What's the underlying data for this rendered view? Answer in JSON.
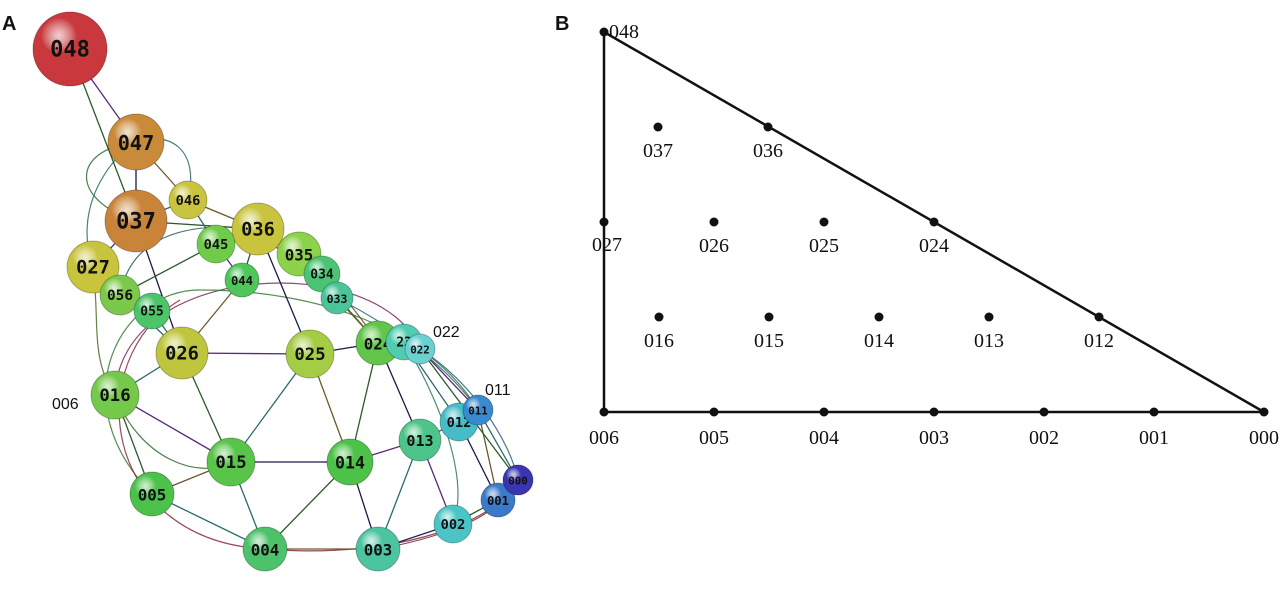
{
  "panels": {
    "a": "A",
    "b": "B"
  },
  "network": {
    "nodes": [
      {
        "id": "048",
        "color": "#c8383c"
      },
      {
        "id": "047",
        "color": "#c98a3a"
      },
      {
        "id": "037",
        "color": "#c9843a"
      },
      {
        "id": "046",
        "color": "#c9c43e"
      },
      {
        "id": "036",
        "color": "#c9c43e"
      },
      {
        "id": "027",
        "color": "#c9c43e"
      },
      {
        "id": "045",
        "color": "#6fcc4a"
      },
      {
        "id": "044",
        "color": "#4dc65a"
      },
      {
        "id": "035",
        "color": "#8cd24a"
      },
      {
        "id": "034",
        "color": "#4cc474"
      },
      {
        "id": "033",
        "color": "#4cc49a"
      },
      {
        "id": "056",
        "color": "#7cc84a"
      },
      {
        "id": "055",
        "color": "#4cc46a"
      },
      {
        "id": "026",
        "color": "#bfc63e"
      },
      {
        "id": "025",
        "color": "#a4cc44"
      },
      {
        "id": "024",
        "color": "#62c64a"
      },
      {
        "id": "023",
        "color": "#52ccb0"
      },
      {
        "id": "022",
        "color": "#6ad0d0"
      },
      {
        "id": "016",
        "color": "#74c84a"
      },
      {
        "id": "015",
        "color": "#58c44a"
      },
      {
        "id": "014",
        "color": "#4cc248"
      },
      {
        "id": "013",
        "color": "#4cc48a"
      },
      {
        "id": "012",
        "color": "#46bcc8"
      },
      {
        "id": "011",
        "color": "#3a8ad0"
      },
      {
        "id": "005",
        "color": "#4cc24a"
      },
      {
        "id": "004",
        "color": "#4cc26a"
      },
      {
        "id": "003",
        "color": "#4cc4a0"
      },
      {
        "id": "002",
        "color": "#4ac4c4"
      },
      {
        "id": "001",
        "color": "#3a7ac8"
      },
      {
        "id": "000",
        "color": "#3a36b0"
      }
    ],
    "edges": [
      [
        "048",
        "047"
      ],
      [
        "048",
        "037"
      ],
      [
        "047",
        "037"
      ],
      [
        "047",
        "046"
      ],
      [
        "037",
        "046"
      ],
      [
        "037",
        "027"
      ],
      [
        "037",
        "036"
      ],
      [
        "037",
        "026"
      ],
      [
        "046",
        "036"
      ],
      [
        "046",
        "045"
      ],
      [
        "036",
        "035"
      ],
      [
        "036",
        "044"
      ],
      [
        "036",
        "025"
      ],
      [
        "027",
        "056"
      ],
      [
        "027",
        "026"
      ],
      [
        "045",
        "044"
      ],
      [
        "045",
        "056"
      ],
      [
        "056",
        "055"
      ],
      [
        "044",
        "026"
      ],
      [
        "055",
        "026"
      ],
      [
        "035",
        "034"
      ],
      [
        "035",
        "024"
      ],
      [
        "034",
        "033"
      ],
      [
        "033",
        "024"
      ],
      [
        "026",
        "016"
      ],
      [
        "026",
        "025"
      ],
      [
        "026",
        "015"
      ],
      [
        "025",
        "024"
      ],
      [
        "025",
        "014"
      ],
      [
        "025",
        "015"
      ],
      [
        "024",
        "023"
      ],
      [
        "024",
        "014"
      ],
      [
        "024",
        "013"
      ],
      [
        "023",
        "022"
      ],
      [
        "023",
        "012"
      ],
      [
        "016",
        "015"
      ],
      [
        "016",
        "005"
      ],
      [
        "015",
        "014"
      ],
      [
        "015",
        "005"
      ],
      [
        "015",
        "004"
      ],
      [
        "014",
        "013"
      ],
      [
        "014",
        "004"
      ],
      [
        "014",
        "003"
      ],
      [
        "013",
        "012"
      ],
      [
        "013",
        "003"
      ],
      [
        "013",
        "002"
      ],
      [
        "012",
        "011"
      ],
      [
        "012",
        "001"
      ],
      [
        "011",
        "001"
      ],
      [
        "011",
        "000"
      ],
      [
        "001",
        "000"
      ],
      [
        "002",
        "001"
      ],
      [
        "003",
        "002"
      ],
      [
        "004",
        "003"
      ],
      [
        "005",
        "004"
      ],
      [
        "022",
        "011"
      ],
      [
        "022",
        "000"
      ]
    ],
    "external_labels": [
      "022",
      "011",
      "006"
    ]
  },
  "triangle": {
    "vertices": [
      "006",
      "048",
      "000"
    ],
    "points": [
      {
        "label": "048",
        "a": 0,
        "b": 8
      },
      {
        "label": "037",
        "a": 1,
        "b": 6
      },
      {
        "label": "036",
        "a": 1,
        "b": 6,
        "edge": true
      },
      {
        "label": "027",
        "a": 0,
        "b": 4
      },
      {
        "label": "026",
        "a": 1,
        "b": 4
      },
      {
        "label": "025",
        "a": 2,
        "b": 4
      },
      {
        "label": "024",
        "a": 3,
        "b": 4
      },
      {
        "label": "016",
        "a": 1,
        "b": 2
      },
      {
        "label": "015",
        "a": 2,
        "b": 2
      },
      {
        "label": "014",
        "a": 3,
        "b": 2
      },
      {
        "label": "013",
        "a": 4,
        "b": 2
      },
      {
        "label": "012",
        "a": 5,
        "b": 2
      },
      {
        "label": "006",
        "a": 0,
        "b": 0
      },
      {
        "label": "005",
        "a": 1,
        "b": 0
      },
      {
        "label": "004",
        "a": 2,
        "b": 0
      },
      {
        "label": "003",
        "a": 3,
        "b": 0
      },
      {
        "label": "002",
        "a": 4,
        "b": 0
      },
      {
        "label": "001",
        "a": 5,
        "b": 0
      },
      {
        "label": "000",
        "a": 6,
        "b": 0
      }
    ]
  }
}
